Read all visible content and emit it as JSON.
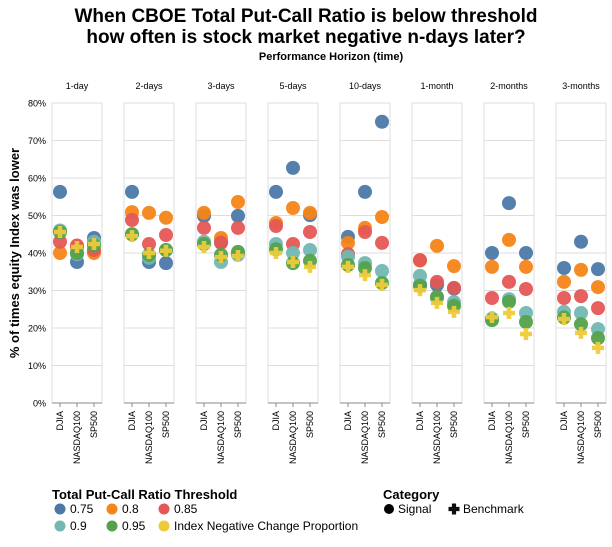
{
  "chart_data": {
    "type": "scatter",
    "title": [
      "When CBOE Total Put-Call Ratio is below threshold",
      "how often is stock market negative n-days later?"
    ],
    "subtitle": "Performance Horizon (time)",
    "ylabel": "% of times equity Index was lower",
    "ylim": [
      0,
      80
    ],
    "yticks": [
      "0%",
      "10%",
      "20%",
      "30%",
      "40%",
      "50%",
      "60%",
      "70%",
      "80%"
    ],
    "grid": true,
    "categories": [
      "DJIA",
      "NASDAQ100",
      "SP500"
    ],
    "horizons": [
      "1-day",
      "2-days",
      "3-days",
      "5-days",
      "10-days",
      "1-month",
      "2-months",
      "3-months"
    ],
    "series": [
      {
        "name": "0.75",
        "category": "Signal",
        "color": "#4c78a8",
        "values": [
          [
            56.3,
            37.6,
            44
          ],
          [
            56.3,
            37.6,
            37.3
          ],
          [
            49.9,
            43,
            49.9
          ],
          [
            56.3,
            62.7,
            50.1
          ],
          [
            44.3,
            56.3,
            75
          ],
          [
            31.5,
            31.5,
            30.5
          ],
          [
            40,
            53.3,
            40
          ],
          [
            36,
            43,
            35.7
          ]
        ]
      },
      {
        "name": "0.8",
        "category": "Signal",
        "color": "#f58518",
        "values": [
          [
            40,
            41.5,
            40
          ],
          [
            50.9,
            50.7,
            49.4
          ],
          [
            50.7,
            44,
            53.6
          ],
          [
            48,
            52,
            50.7
          ],
          [
            42.7,
            46.7,
            49.6
          ],
          [
            38,
            41.9,
            36.5
          ],
          [
            36.3,
            43.5,
            36.3
          ],
          [
            32.3,
            35.5,
            30.9
          ]
        ]
      },
      {
        "name": "0.85",
        "category": "Signal",
        "color": "#e45756",
        "values": [
          [
            43,
            42,
            40.8
          ],
          [
            48.8,
            42.4,
            44.8
          ],
          [
            46.7,
            42.7,
            46.7
          ],
          [
            47.2,
            42.4,
            45.6
          ],
          [
            39.7,
            45.6,
            42.7
          ],
          [
            38.1,
            32.3,
            30.7
          ],
          [
            28,
            32.3,
            30.4
          ],
          [
            28,
            28.5,
            25.3
          ]
        ]
      },
      {
        "name": "0.9",
        "category": "Signal",
        "color": "#72b7b2",
        "values": [
          [
            46,
            39.7,
            43
          ],
          [
            45,
            38.7,
            40.8
          ],
          [
            43,
            37.6,
            39.5
          ],
          [
            42.4,
            40,
            40.8
          ],
          [
            39,
            37.3,
            35.2
          ],
          [
            33.9,
            28,
            26.9
          ],
          [
            22.5,
            27.7,
            24
          ],
          [
            24.3,
            24,
            19.7
          ]
        ]
      },
      {
        "name": "0.95",
        "category": "Signal",
        "color": "#54a24b",
        "values": [
          [
            45.6,
            40,
            42
          ],
          [
            45,
            39.5,
            40.8
          ],
          [
            42.4,
            39.5,
            40.3
          ],
          [
            41,
            37.3,
            37.9
          ],
          [
            36.8,
            36,
            32
          ],
          [
            31.2,
            28.3,
            25.9
          ],
          [
            22.1,
            27,
            21.6
          ],
          [
            22.8,
            21,
            17.3
          ]
        ]
      },
      {
        "name": "Index Negative Change Proportion",
        "category": "Benchmark",
        "color": "#eeca3b",
        "values": [
          [
            45.6,
            41.6,
            42.4
          ],
          [
            44.5,
            40,
            40.6
          ],
          [
            41.6,
            38.9,
            39.2
          ],
          [
            40,
            37.6,
            36.3
          ],
          [
            36.3,
            34.1,
            31.5
          ],
          [
            30.1,
            26.7,
            24.3
          ],
          [
            22.9,
            24,
            18.4
          ],
          [
            22.4,
            18.7,
            14.7
          ]
        ]
      }
    ],
    "legend": {
      "position": "bottom",
      "color_title": "Total Put-Call Ratio Threshold",
      "shape_title": "Category",
      "shape_items": [
        "Signal",
        "Benchmark"
      ]
    }
  }
}
